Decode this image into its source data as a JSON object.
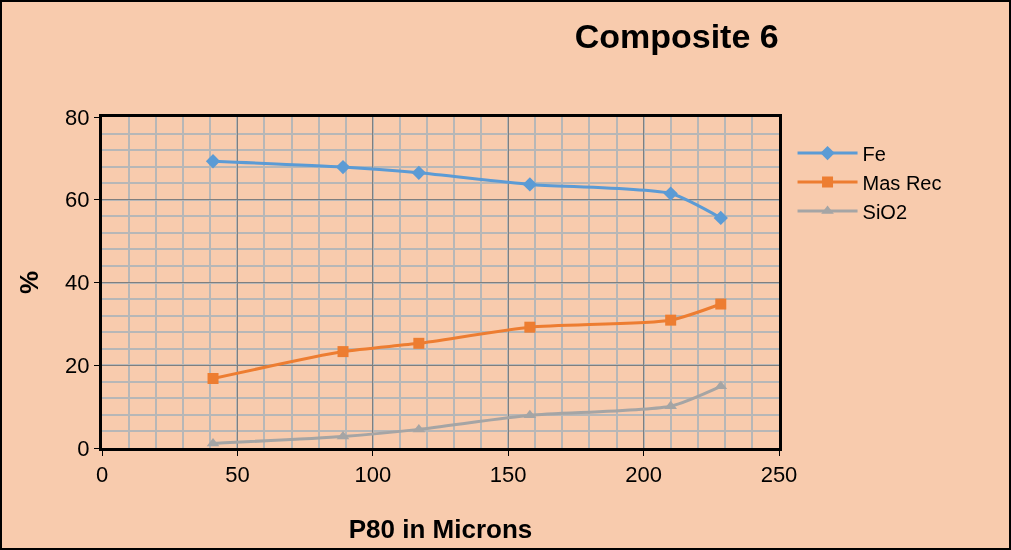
{
  "chart_data": {
    "type": "line",
    "title": "Composite 6",
    "xlabel": "P80 in Microns",
    "ylabel": "%",
    "xlim": [
      0,
      250
    ],
    "xticks": [
      0,
      50,
      100,
      150,
      200,
      250
    ],
    "ylim": [
      0,
      80
    ],
    "yticks": [
      0,
      20,
      40,
      60,
      80
    ],
    "grid": true,
    "legend": "right",
    "line_style": "solid",
    "series": [
      {
        "name": "Fe",
        "color": "#5b9bd5",
        "marker": "diamond",
        "x": [
          41,
          89,
          117,
          158,
          210,
          228.5
        ],
        "values": [
          69.3,
          67.9,
          66.5,
          63.7,
          61.5,
          55.6
        ]
      },
      {
        "name": "Mas Rec",
        "color": "#ed7d31",
        "marker": "square",
        "x": [
          41,
          89,
          117,
          158,
          210,
          228.5
        ],
        "values": [
          16.8,
          23.3,
          25.3,
          29.2,
          30.9,
          34.8
        ]
      },
      {
        "name": "SiO2",
        "color": "#a5a5a5",
        "marker": "triangle",
        "x": [
          41,
          89,
          117,
          158,
          210,
          228.5
        ],
        "values": [
          1.1,
          2.8,
          4.5,
          7.9,
          10.1,
          14.9
        ]
      }
    ]
  }
}
